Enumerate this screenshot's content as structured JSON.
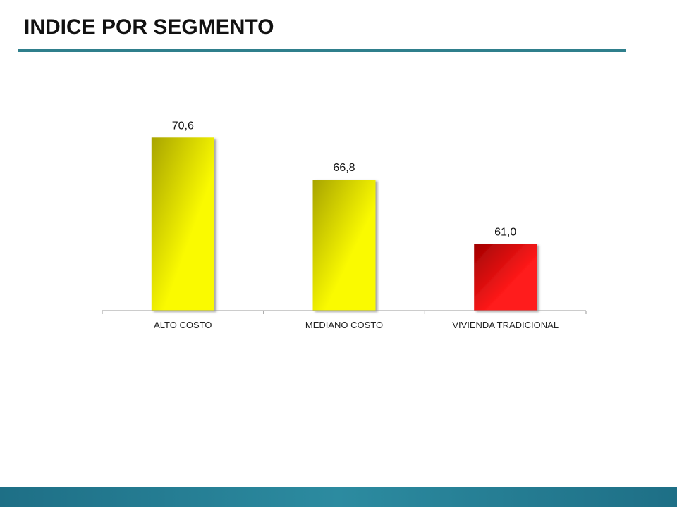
{
  "page": {
    "title": "INDICE POR SEGMENTO"
  },
  "colors": {
    "title_rule": "#2f7f8c",
    "footer_band": "#2c8ba0"
  },
  "chart_data": {
    "type": "bar",
    "categories": [
      "ALTO COSTO",
      "MEDIANO COSTO",
      "VIVIENDA TRADICIONAL"
    ],
    "values": [
      70.6,
      66.8,
      61.0
    ],
    "value_labels": [
      "70,6",
      "66,8",
      "61,0"
    ],
    "bar_colors": [
      {
        "light": "#fafa00",
        "dark": "#a8a400"
      },
      {
        "light": "#fafa00",
        "dark": "#a8a400"
      },
      {
        "light": "#ff1a1a",
        "dark": "#a00000"
      }
    ],
    "ylim": [
      55,
      75
    ],
    "grid": false,
    "legend": "none",
    "xlabel": "",
    "ylabel": ""
  }
}
